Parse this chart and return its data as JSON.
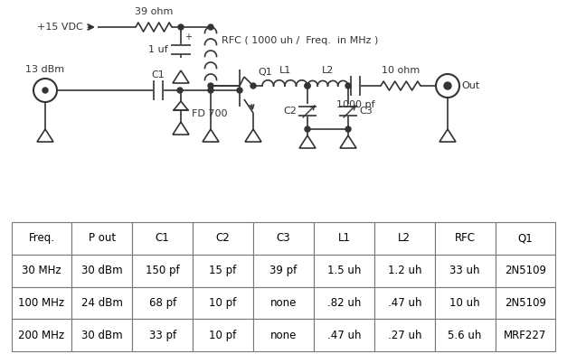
{
  "bg_color": "#ffffff",
  "line_color": "#333333",
  "table_headers": [
    "Freq.",
    "P out",
    "C1",
    "C2",
    "C3",
    "L1",
    "L2",
    "RFC",
    "Q1"
  ],
  "table_rows": [
    [
      "30 MHz",
      "30 dBm",
      "150 pf",
      "15 pf",
      "39 pf",
      "1.5 uh",
      "1.2 uh",
      "33 uh",
      "2N5109"
    ],
    [
      "100 MHz",
      "24 dBm",
      "68 pf",
      "10 pf",
      "none",
      ".82 uh",
      ".47 uh",
      "10 uh",
      "2N5109"
    ],
    [
      "200 MHz",
      "30 dBm",
      "33 pf",
      "10 pf",
      "none",
      ".47 uh",
      ".27 uh",
      "5.6 uh",
      "MRF227"
    ]
  ],
  "vdc": "+15 VDC",
  "r1_label": "39 ohm",
  "cap1_label": "1 uf",
  "rfc_label": "RFC ( 1000 uh /  Freq.  in MHz )",
  "input_label": "13 dBm",
  "diode_label": "FD 700",
  "c1_label": "C1",
  "q1_label": "Q1",
  "l1_label": "L1",
  "l2_label": "L2",
  "c2_label": "C2",
  "c3_label": "C3",
  "r2_label": "10 ohm",
  "cap2_label": "1000 pf",
  "out_label": "Out",
  "plus_label": "+"
}
